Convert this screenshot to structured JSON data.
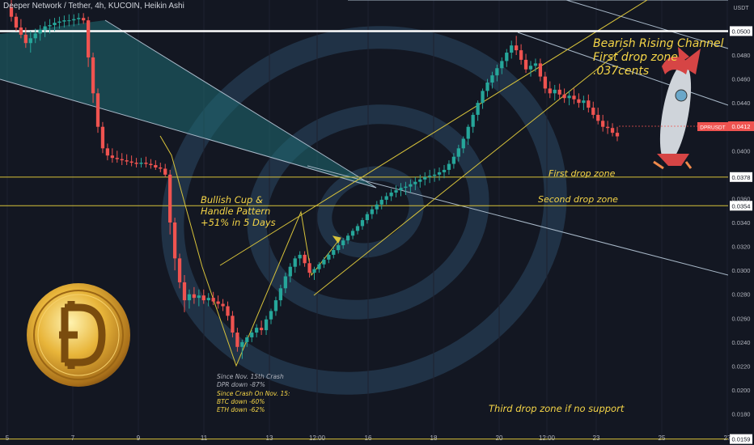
{
  "header": {
    "title": "Deeper Network / Tether, 4h, KUCOIN, Heikin Ashi"
  },
  "colors": {
    "background": "#131722",
    "up": "#26a69a",
    "down": "#ef5350",
    "annotation": "#f5d547",
    "axis_text": "#b2b5be",
    "level_line": "#d8c33a"
  },
  "chart_data": {
    "type": "candlestick",
    "symbol": "DPRUSDT",
    "yaxis_unit": "USDT",
    "ylim": [
      0.0154,
      0.0526
    ],
    "y_ticks": [
      "0.0500",
      "0.0480",
      "0.0460",
      "0.0440",
      "0.0420",
      "0.0400",
      "0.0380",
      "0.0360",
      "0.0340",
      "0.0320",
      "0.0300",
      "0.0280",
      "0.0260",
      "0.0240",
      "0.0220",
      "0.0200",
      "0.0180",
      "0.0160"
    ],
    "x_ticks": [
      "5",
      "7",
      "9",
      "11",
      "13",
      "12:00",
      "16",
      "18",
      "20",
      "12:00",
      "23",
      "25",
      "27"
    ],
    "highlighted_levels": [
      "0.0500",
      "0.0378",
      "0.0354",
      "0.0159"
    ],
    "last_price": "0.0412",
    "horizontal_levels": [
      0.05,
      0.0378,
      0.0354,
      0.0159
    ],
    "annotations": {
      "channel": [
        "Bearish Rising Channel",
        "First drop zone",
        ".037cents"
      ],
      "pattern": [
        "Bullish Cup &",
        "Handle Pattern",
        "+51% in 5 Days"
      ],
      "first_zone": "First drop zone",
      "second_zone": "Second drop zone",
      "third_zone": "Third drop zone if no support",
      "crash": [
        "Since Nov. 15th Crash",
        "DPR down -87%"
      ],
      "since": [
        "Since Crash On Nov. 15:",
        "BTC down -60%",
        "ETH down -62%"
      ]
    },
    "candles": [
      [
        0.052,
        0.0526,
        0.0508,
        0.0512
      ],
      [
        0.0512,
        0.0515,
        0.05,
        0.0503
      ],
      [
        0.0503,
        0.051,
        0.0494,
        0.0497
      ],
      [
        0.0497,
        0.0503,
        0.0486,
        0.049
      ],
      [
        0.049,
        0.05,
        0.0482,
        0.0494
      ],
      [
        0.0494,
        0.0502,
        0.049,
        0.0498
      ],
      [
        0.0498,
        0.0505,
        0.0492,
        0.0501
      ],
      [
        0.0501,
        0.0508,
        0.0495,
        0.0504
      ],
      [
        0.0504,
        0.051,
        0.0498,
        0.0505
      ],
      [
        0.0505,
        0.0511,
        0.05,
        0.0507
      ],
      [
        0.0507,
        0.0512,
        0.0502,
        0.0508
      ],
      [
        0.0508,
        0.0513,
        0.0503,
        0.0509
      ],
      [
        0.0509,
        0.0514,
        0.0504,
        0.0509
      ],
      [
        0.0509,
        0.0514,
        0.0504,
        0.051
      ],
      [
        0.051,
        0.0515,
        0.0505,
        0.0511
      ],
      [
        0.0511,
        0.0515,
        0.0506,
        0.0509
      ],
      [
        0.0509,
        0.0512,
        0.047,
        0.0478
      ],
      [
        0.0478,
        0.0482,
        0.044,
        0.0448
      ],
      [
        0.0448,
        0.0452,
        0.0415,
        0.042
      ],
      [
        0.042,
        0.0424,
        0.0398,
        0.0402
      ],
      [
        0.0402,
        0.0406,
        0.0392,
        0.0396
      ],
      [
        0.0396,
        0.0402,
        0.039,
        0.0394
      ],
      [
        0.0394,
        0.04,
        0.039,
        0.0393
      ],
      [
        0.0393,
        0.0398,
        0.0388,
        0.0392
      ],
      [
        0.0392,
        0.0397,
        0.0388,
        0.0391
      ],
      [
        0.0391,
        0.0396,
        0.0387,
        0.039
      ],
      [
        0.039,
        0.0394,
        0.0386,
        0.0389
      ],
      [
        0.0389,
        0.0394,
        0.0386,
        0.039
      ],
      [
        0.039,
        0.0395,
        0.0386,
        0.0389
      ],
      [
        0.0389,
        0.0393,
        0.0385,
        0.0388
      ],
      [
        0.0388,
        0.0392,
        0.0384,
        0.0386
      ],
      [
        0.0386,
        0.039,
        0.0382,
        0.0385
      ],
      [
        0.0385,
        0.0389,
        0.0378,
        0.038
      ],
      [
        0.038,
        0.0384,
        0.033,
        0.034
      ],
      [
        0.034,
        0.0344,
        0.03,
        0.031
      ],
      [
        0.031,
        0.0314,
        0.0285,
        0.029
      ],
      [
        0.029,
        0.0296,
        0.0265,
        0.0275
      ],
      [
        0.0275,
        0.0284,
        0.0268,
        0.028
      ],
      [
        0.028,
        0.0286,
        0.0272,
        0.0277
      ],
      [
        0.0277,
        0.0284,
        0.027,
        0.0279
      ],
      [
        0.0279,
        0.0284,
        0.0272,
        0.0275
      ],
      [
        0.0275,
        0.0281,
        0.027,
        0.0277
      ],
      [
        0.0277,
        0.0282,
        0.0271,
        0.0274
      ],
      [
        0.0274,
        0.0279,
        0.0268,
        0.0272
      ],
      [
        0.0272,
        0.0276,
        0.0266,
        0.027
      ],
      [
        0.027,
        0.0274,
        0.0258,
        0.0262
      ],
      [
        0.0262,
        0.0266,
        0.0244,
        0.0248
      ],
      [
        0.0248,
        0.0252,
        0.0232,
        0.0236
      ],
      [
        0.0236,
        0.0242,
        0.0226,
        0.024
      ],
      [
        0.024,
        0.0246,
        0.0236,
        0.0244
      ],
      [
        0.0244,
        0.025,
        0.024,
        0.0248
      ],
      [
        0.0248,
        0.0255,
        0.0244,
        0.0252
      ],
      [
        0.0252,
        0.0258,
        0.0246,
        0.025
      ],
      [
        0.025,
        0.0262,
        0.0246,
        0.0259
      ],
      [
        0.0259,
        0.0268,
        0.0255,
        0.0266
      ],
      [
        0.0266,
        0.0278,
        0.0262,
        0.0275
      ],
      [
        0.0275,
        0.0288,
        0.027,
        0.0285
      ],
      [
        0.0285,
        0.0298,
        0.0281,
        0.0295
      ],
      [
        0.0295,
        0.0306,
        0.029,
        0.0303
      ],
      [
        0.0303,
        0.0312,
        0.0298,
        0.031
      ],
      [
        0.031,
        0.0316,
        0.0304,
        0.0313
      ],
      [
        0.0313,
        0.0316,
        0.0303,
        0.0306
      ],
      [
        0.0306,
        0.031,
        0.0294,
        0.0298
      ],
      [
        0.0298,
        0.0303,
        0.0292,
        0.0301
      ],
      [
        0.0301,
        0.0307,
        0.0298,
        0.0305
      ],
      [
        0.0305,
        0.0311,
        0.0302,
        0.0309
      ],
      [
        0.0309,
        0.0315,
        0.0306,
        0.0313
      ],
      [
        0.0313,
        0.0319,
        0.031,
        0.0317
      ],
      [
        0.0317,
        0.0323,
        0.0314,
        0.0321
      ],
      [
        0.0321,
        0.0327,
        0.0318,
        0.0325
      ],
      [
        0.0325,
        0.0331,
        0.0322,
        0.0329
      ],
      [
        0.0329,
        0.0335,
        0.0326,
        0.0333
      ],
      [
        0.0333,
        0.0339,
        0.033,
        0.0337
      ],
      [
        0.0337,
        0.0344,
        0.0334,
        0.0342
      ],
      [
        0.0342,
        0.0349,
        0.0339,
        0.0347
      ],
      [
        0.0347,
        0.0354,
        0.0343,
        0.0351
      ],
      [
        0.0351,
        0.0358,
        0.0347,
        0.0355
      ],
      [
        0.0355,
        0.0362,
        0.0351,
        0.0359
      ],
      [
        0.0359,
        0.0365,
        0.0355,
        0.0362
      ],
      [
        0.0362,
        0.0368,
        0.0358,
        0.0365
      ],
      [
        0.0365,
        0.0371,
        0.0361,
        0.0367
      ],
      [
        0.0367,
        0.0373,
        0.0362,
        0.0369
      ],
      [
        0.0369,
        0.0374,
        0.0363,
        0.037
      ],
      [
        0.037,
        0.0376,
        0.0365,
        0.0372
      ],
      [
        0.0372,
        0.0378,
        0.0367,
        0.0374
      ],
      [
        0.0374,
        0.038,
        0.0369,
        0.0376
      ],
      [
        0.0376,
        0.0382,
        0.0371,
        0.0378
      ],
      [
        0.0378,
        0.0384,
        0.0373,
        0.0379
      ],
      [
        0.0379,
        0.0385,
        0.0374,
        0.038
      ],
      [
        0.038,
        0.0386,
        0.0375,
        0.0382
      ],
      [
        0.0382,
        0.0388,
        0.0377,
        0.0384
      ],
      [
        0.0384,
        0.0392,
        0.038,
        0.0389
      ],
      [
        0.0389,
        0.0398,
        0.0385,
        0.0395
      ],
      [
        0.0395,
        0.0405,
        0.0391,
        0.0402
      ],
      [
        0.0402,
        0.0412,
        0.0398,
        0.041
      ],
      [
        0.041,
        0.0422,
        0.0405,
        0.042
      ],
      [
        0.042,
        0.0432,
        0.0415,
        0.043
      ],
      [
        0.043,
        0.0442,
        0.0425,
        0.044
      ],
      [
        0.044,
        0.0452,
        0.0435,
        0.045
      ],
      [
        0.045,
        0.046,
        0.0445,
        0.0457
      ],
      [
        0.0457,
        0.0466,
        0.0452,
        0.0463
      ],
      [
        0.0463,
        0.0472,
        0.0458,
        0.0469
      ],
      [
        0.0469,
        0.0478,
        0.0464,
        0.0475
      ],
      [
        0.0475,
        0.0485,
        0.047,
        0.0482
      ],
      [
        0.0482,
        0.0492,
        0.0477,
        0.0488
      ],
      [
        0.0488,
        0.0496,
        0.048,
        0.0484
      ],
      [
        0.0484,
        0.0489,
        0.0472,
        0.0476
      ],
      [
        0.0476,
        0.0481,
        0.0465,
        0.0468
      ],
      [
        0.0468,
        0.0475,
        0.0462,
        0.0471
      ],
      [
        0.0471,
        0.0477,
        0.0466,
        0.0473
      ],
      [
        0.0473,
        0.0477,
        0.0458,
        0.0462
      ],
      [
        0.0462,
        0.0466,
        0.0448,
        0.0452
      ],
      [
        0.0452,
        0.0458,
        0.0444,
        0.0448
      ],
      [
        0.0448,
        0.0455,
        0.0442,
        0.0451
      ],
      [
        0.0451,
        0.0456,
        0.0443,
        0.0447
      ],
      [
        0.0447,
        0.0452,
        0.044,
        0.0444
      ],
      [
        0.0444,
        0.045,
        0.0438,
        0.0446
      ],
      [
        0.0446,
        0.0452,
        0.0439,
        0.0443
      ],
      [
        0.0443,
        0.0448,
        0.0436,
        0.044
      ],
      [
        0.044,
        0.0446,
        0.0434,
        0.0442
      ],
      [
        0.0442,
        0.0447,
        0.0432,
        0.0436
      ],
      [
        0.0436,
        0.0441,
        0.0427,
        0.043
      ],
      [
        0.043,
        0.0436,
        0.0422,
        0.0425
      ],
      [
        0.0425,
        0.043,
        0.0416,
        0.042
      ],
      [
        0.042,
        0.0425,
        0.0414,
        0.0419
      ],
      [
        0.0419,
        0.0423,
        0.0412,
        0.0415
      ],
      [
        0.0415,
        0.042,
        0.0408,
        0.0412
      ]
    ]
  }
}
